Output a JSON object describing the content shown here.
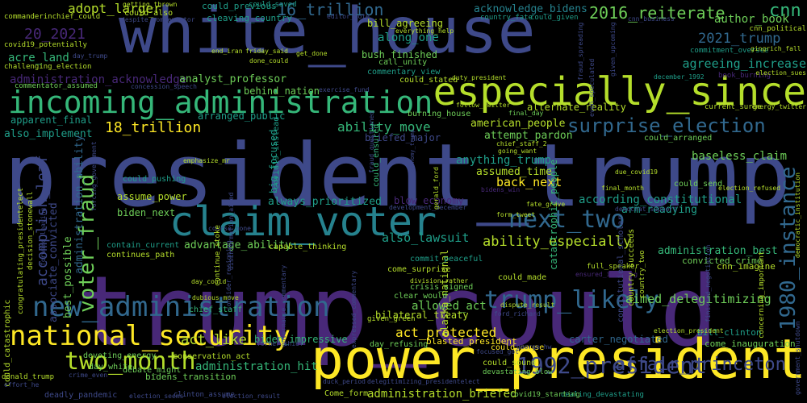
{
  "palette": {
    "yellow": "#fde725",
    "lime": "#b5de2b",
    "green": "#6ece58",
    "aqua": "#35b779",
    "teal": "#1f9e89",
    "cyan": "#26828e",
    "blue": "#31688e",
    "indigo": "#3e4989",
    "violet": "#482878",
    "purple": "#440154"
  },
  "words": [
    {
      "text": "white_house",
      "color": "indigo"
    },
    {
      "text": "president_trump",
      "color": "indigo"
    },
    {
      "text": "trump_could",
      "color": "violet"
    },
    {
      "text": "power_president",
      "color": "yellow"
    },
    {
      "text": "especially_since",
      "color": "lime"
    },
    {
      "text": "incoming_administration",
      "color": "aqua"
    },
    {
      "text": "claim_voter",
      "color": "cyan"
    },
    {
      "text": "national_security",
      "color": "yellow"
    },
    {
      "text": "new_administration",
      "color": "blue"
    },
    {
      "text": "surprise_election",
      "color": "blue"
    },
    {
      "text": "next_two",
      "color": "blue"
    },
    {
      "text": "trump_likely",
      "color": "blue"
    },
    {
      "text": "two_month",
      "color": "lime"
    },
    {
      "text": "voter_fraud",
      "color": "green"
    },
    {
      "text": "1992_president",
      "color": "indigo"
    },
    {
      "text": "1980_instance",
      "color": "blue"
    },
    {
      "text": "affair_princeton",
      "color": "indigo"
    },
    {
      "text": "2016_reiterate",
      "color": "green"
    },
    {
      "text": "16_trillion",
      "color": "blue"
    },
    {
      "text": "18_trillion",
      "color": "yellow"
    },
    {
      "text": "20_2021",
      "color": "violet"
    },
    {
      "text": "2021_trump",
      "color": "blue"
    },
    {
      "text": "acknowledge_bidens",
      "color": "cyan"
    },
    {
      "text": "ability_move",
      "color": "aqua"
    },
    {
      "text": "ability_especially",
      "color": "lime"
    },
    {
      "text": "accomplish_leaf",
      "color": "indigo"
    },
    {
      "text": "aimed_delegitimizing",
      "color": "green"
    },
    {
      "text": "act_protected",
      "color": "yellow"
    },
    {
      "text": "cnn",
      "color": "aqua"
    },
    {
      "text": "adopt_larger",
      "color": "lime"
    },
    {
      "text": "author_book",
      "color": "green"
    },
    {
      "text": "agreeing_increase",
      "color": "teal"
    },
    {
      "text": "administration_briefed",
      "color": "lime"
    },
    {
      "text": "administration_hit",
      "color": "aqua"
    },
    {
      "text": "administration_best",
      "color": "aqua"
    },
    {
      "text": "according_constitutional",
      "color": "teal"
    },
    {
      "text": "acre_land",
      "color": "aqua"
    },
    {
      "text": "administration_acknowledge",
      "color": "violet"
    },
    {
      "text": "analyst_professor",
      "color": "green"
    },
    {
      "text": "anything_trump",
      "color": "teal"
    },
    {
      "text": "assumed_time",
      "color": "lime"
    },
    {
      "text": "back_next",
      "color": "yellow"
    },
    {
      "text": "advantage_ability",
      "color": "green"
    },
    {
      "text": "also_lawsuit",
      "color": "teal"
    },
    {
      "text": "always_prioritized",
      "color": "teal"
    },
    {
      "text": "allowed_act",
      "color": "green"
    },
    {
      "text": "act_like",
      "color": "lime"
    },
    {
      "text": "biden_impressive",
      "color": "aqua"
    },
    {
      "text": "carter_negotiated",
      "color": "blue"
    },
    {
      "text": "arm_readying",
      "color": "teal"
    },
    {
      "text": "baseless_claim",
      "color": "green"
    },
    {
      "text": "american_people",
      "color": "lime"
    },
    {
      "text": "attempt_pardon",
      "color": "green"
    },
    {
      "text": "alternate_reality",
      "color": "lime"
    },
    {
      "text": "along_one",
      "color": "teal"
    },
    {
      "text": "behind_nation",
      "color": "green"
    },
    {
      "text": "bush_finished",
      "color": "green"
    },
    {
      "text": "bill_agreeing",
      "color": "lime"
    },
    {
      "text": "apparent_final",
      "color": "teal"
    },
    {
      "text": "also_implement",
      "color": "teal"
    },
    {
      "text": "arranged_public",
      "color": "teal"
    },
    {
      "text": "assume_power",
      "color": "lime"
    },
    {
      "text": "biden_next",
      "color": "green"
    },
    {
      "text": "best_possible",
      "color": "green"
    },
    {
      "text": "associate_convicted",
      "color": "indigo"
    },
    {
      "text": "administration_ability",
      "color": "blue"
    },
    {
      "text": "big_focused",
      "color": "teal"
    },
    {
      "text": "blow_economy",
      "color": "violet"
    },
    {
      "text": "catastrophic_people",
      "color": "aqua"
    },
    {
      "text": "alaska_national",
      "color": "lime"
    },
    {
      "text": "bilateral_treaty",
      "color": "lime"
    },
    {
      "text": "could_catastrophic",
      "color": "lime"
    },
    {
      "text": "bidens_transition",
      "color": "green"
    },
    {
      "text": "bill_clinton",
      "color": "teal"
    },
    {
      "text": "come_inauguration",
      "color": "green"
    },
    {
      "text": "convicted_crime",
      "color": "green"
    },
    {
      "text": "cnn_imagine",
      "color": "lime"
    },
    {
      "text": "cleaving_country",
      "color": "teal"
    },
    {
      "text": "could_previous",
      "color": "teal"
    },
    {
      "text": "could_send",
      "color": "green"
    },
    {
      "text": "could_arranged",
      "color": "green"
    },
    {
      "text": "burning_house",
      "color": "green"
    },
    {
      "text": "call_unity",
      "color": "green"
    },
    {
      "text": "capable_thinking",
      "color": "lime"
    },
    {
      "text": "continues_path",
      "color": "lime"
    },
    {
      "text": "contain_current",
      "color": "teal"
    },
    {
      "text": "crisis_signed",
      "color": "green"
    },
    {
      "text": "come_surprise",
      "color": "lime"
    },
    {
      "text": "clear_would",
      "color": "green"
    },
    {
      "text": "could_ensured",
      "color": "aqua"
    },
    {
      "text": "conservation_act",
      "color": "lime"
    },
    {
      "text": "chief_staff",
      "color": "aqua"
    },
    {
      "text": "commentary_view",
      "color": "teal"
    },
    {
      "text": "could_pushing",
      "color": "teal"
    },
    {
      "text": "could_made",
      "color": "lime"
    },
    {
      "text": "commit_peaceful",
      "color": "teal"
    },
    {
      "text": "could_cause",
      "color": "yellow"
    },
    {
      "text": "could_stated",
      "color": "lime"
    },
    {
      "text": "covid19_instead",
      "color": "teal"
    },
    {
      "text": "blasted_president",
      "color": "yellow"
    },
    {
      "text": "day_refusing",
      "color": "green"
    },
    {
      "text": "debate_might",
      "color": "green"
    },
    {
      "text": "day_white",
      "color": "green"
    },
    {
      "text": "devoting_energy",
      "color": "green"
    },
    {
      "text": "donald_trump",
      "color": "lime"
    },
    {
      "text": "given_green",
      "color": "lime"
    },
    {
      "text": "could_sound",
      "color": "lime"
    },
    {
      "text": "devastating_blow",
      "color": "green"
    },
    {
      "text": "dealing_devastating",
      "color": "teal"
    },
    {
      "text": "covid19_starting",
      "color": "green"
    },
    {
      "text": "Come_form",
      "color": "lime"
    },
    {
      "text": "commanderinchief_could",
      "color": "lime"
    },
    {
      "text": "covid19_potentially",
      "color": "lime"
    },
    {
      "text": "challenging_election",
      "color": "lime"
    },
    {
      "text": "commentator_assumed",
      "color": "green"
    },
    {
      "text": "could_also",
      "color": "lime"
    },
    {
      "text": "could_saved",
      "color": "teal"
    },
    {
      "text": "getting_thrown",
      "color": "lime"
    },
    {
      "text": "everything_help",
      "color": "lime"
    },
    {
      "text": "country_fate",
      "color": "teal"
    },
    {
      "text": "could_given",
      "color": "teal"
    },
    {
      "text": "cnn_political",
      "color": "lime"
    },
    {
      "text": "commitment_oversee",
      "color": "teal"
    },
    {
      "text": "book_burning",
      "color": "violet"
    },
    {
      "text": "current_surge",
      "color": "lime"
    },
    {
      "text": "energy_twitter",
      "color": "lime"
    },
    {
      "text": "gingrich_fall",
      "color": "lime"
    },
    {
      "text": "election_sues",
      "color": "lime"
    },
    {
      "text": "december_1992",
      "color": "teal"
    },
    {
      "text": "editor_note",
      "color": "indigo"
    },
    {
      "text": "despite_commentator",
      "color": "indigo"
    },
    {
      "text": "end_iran",
      "color": "lime"
    },
    {
      "text": "friday_said",
      "color": "lime"
    },
    {
      "text": "get_done",
      "color": "lime"
    },
    {
      "text": "done_could",
      "color": "lime"
    },
    {
      "text": "day_trump",
      "color": "indigo"
    },
    {
      "text": "concession_speech",
      "color": "indigo"
    },
    {
      "text": "duty_president",
      "color": "lime"
    },
    {
      "text": "exercise_fund",
      "color": "indigo"
    },
    {
      "text": "follow_twitter",
      "color": "lime"
    },
    {
      "text": "final_day",
      "color": "green"
    },
    {
      "text": "chief_staff_2",
      "color": "lime"
    },
    {
      "text": "going_want",
      "color": "lime"
    },
    {
      "text": "cnn_business",
      "color": "indigo"
    },
    {
      "text": "emphasize_mr",
      "color": "lime"
    },
    {
      "text": "course_none",
      "color": "indigo"
    },
    {
      "text": "development_december",
      "color": "indigo"
    },
    {
      "text": "fate_grave",
      "color": "lime"
    },
    {
      "text": "democrat_support",
      "color": "indigo"
    },
    {
      "text": "final_month",
      "color": "lime"
    },
    {
      "text": "due_covid19",
      "color": "lime"
    },
    {
      "text": "form_tweet",
      "color": "lime"
    },
    {
      "text": "full_speaker",
      "color": "lime"
    },
    {
      "text": "ensured_incoming",
      "color": "violet"
    },
    {
      "text": "dispute_result",
      "color": "lime"
    },
    {
      "text": "ford_richard",
      "color": "indigo"
    },
    {
      "text": "division_rather",
      "color": "lime"
    },
    {
      "text": "day_could",
      "color": "lime"
    },
    {
      "text": "dubious_move",
      "color": "lime"
    },
    {
      "text": "constitutional_scholar",
      "color": "indigo"
    },
    {
      "text": "country_succeeds",
      "color": "lime"
    },
    {
      "text": "country_two",
      "color": "lime"
    },
    {
      "text": "election_refused",
      "color": "lime"
    },
    {
      "text": "finished_negotiation",
      "color": "indigo"
    },
    {
      "text": "concerning_important",
      "color": "lime"
    },
    {
      "text": "democratic_institution",
      "color": "lime"
    },
    {
      "text": "election_president",
      "color": "lime"
    },
    {
      "text": "governance_commentary",
      "color": "indigo"
    },
    {
      "text": "expressed_commentary",
      "color": "indigo"
    },
    {
      "text": "former_chief",
      "color": "indigo"
    },
    {
      "text": "focused_got",
      "color": "indigo"
    },
    {
      "text": "george_hw",
      "color": "indigo"
    },
    {
      "text": "duck_period",
      "color": "indigo"
    },
    {
      "text": "delegitimizing_presidentelect",
      "color": "indigo"
    },
    {
      "text": "clinton_assume",
      "color": "indigo"
    },
    {
      "text": "election_seems",
      "color": "indigo"
    },
    {
      "text": "election_result",
      "color": "indigo"
    },
    {
      "text": "crime_even",
      "color": "indigo"
    },
    {
      "text": "effort_he",
      "color": "indigo"
    },
    {
      "text": "deadly_pandemic",
      "color": "indigo"
    },
    {
      "text": "congratulating_presidentelect",
      "color": "lime"
    },
    {
      "text": "decision_stonewall",
      "color": "lime"
    },
    {
      "text": "forward_leaving",
      "color": "indigo"
    },
    {
      "text": "continue_stoke",
      "color": "lime"
    },
    {
      "text": "consider_resigning",
      "color": "indigo"
    },
    {
      "text": "disinformation_aimed",
      "color": "indigo"
    },
    {
      "text": "gerald_ford",
      "color": "lime"
    },
    {
      "text": "fraud_questioned",
      "color": "indigo"
    },
    {
      "text": "economy_trump",
      "color": "indigo"
    },
    {
      "text": "bidens_win",
      "color": "violet"
    },
    {
      "text": "briefed_major",
      "color": "indigo"
    },
    {
      "text": "even_speculated",
      "color": "indigo"
    },
    {
      "text": "fraud_spreading",
      "color": "indigo"
    },
    {
      "text": "given_upcoming",
      "color": "indigo"
    },
    {
      "text": "forcing_government",
      "color": "indigo"
    },
    {
      "text": "government_shutdown",
      "color": "indigo"
    }
  ]
}
